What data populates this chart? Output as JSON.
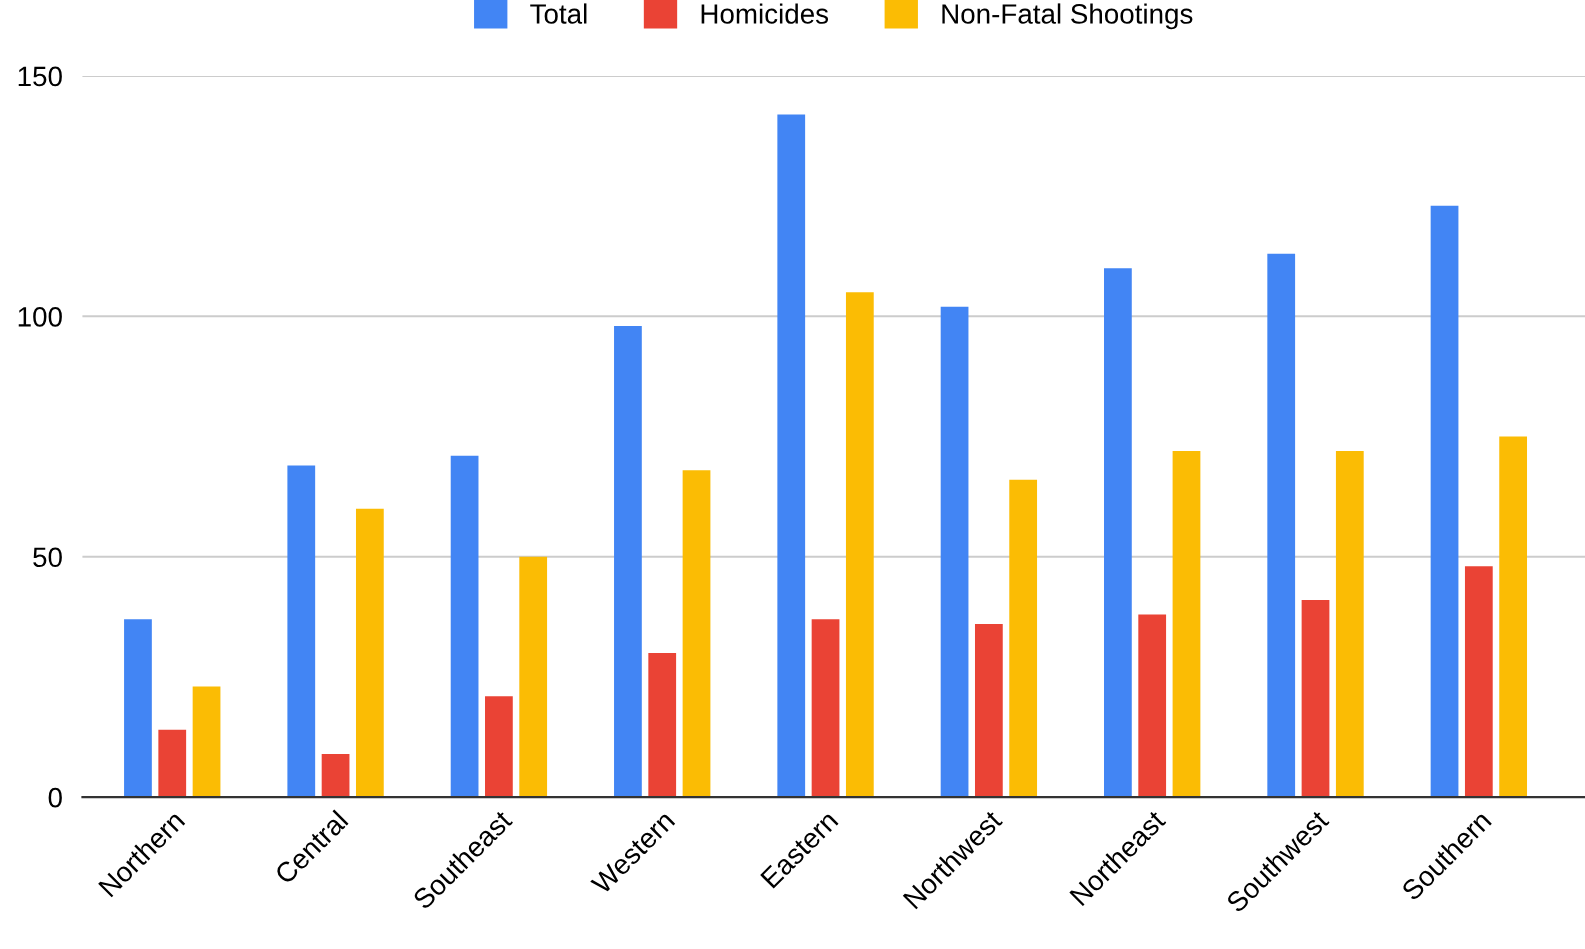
{
  "chart_data": {
    "type": "bar",
    "categories": [
      "Northern",
      "Central",
      "Southeast",
      "Western",
      "Eastern",
      "Northwest",
      "Northeast",
      "Southwest",
      "Southern"
    ],
    "series": [
      {
        "name": "Total",
        "color": "#4285f4",
        "values": [
          37,
          69,
          71,
          98,
          142,
          102,
          110,
          113,
          123
        ]
      },
      {
        "name": "Homicides",
        "color": "#ea4335",
        "values": [
          14,
          9,
          21,
          30,
          37,
          36,
          38,
          41,
          48
        ]
      },
      {
        "name": "Non-Fatal Shootings",
        "color": "#fbbc04",
        "values": [
          23,
          60,
          50,
          68,
          105,
          66,
          72,
          72,
          75
        ]
      }
    ],
    "ylim": [
      0,
      150
    ],
    "yticks": [
      0,
      50,
      100,
      150
    ],
    "grid": "y",
    "legend": "top"
  }
}
